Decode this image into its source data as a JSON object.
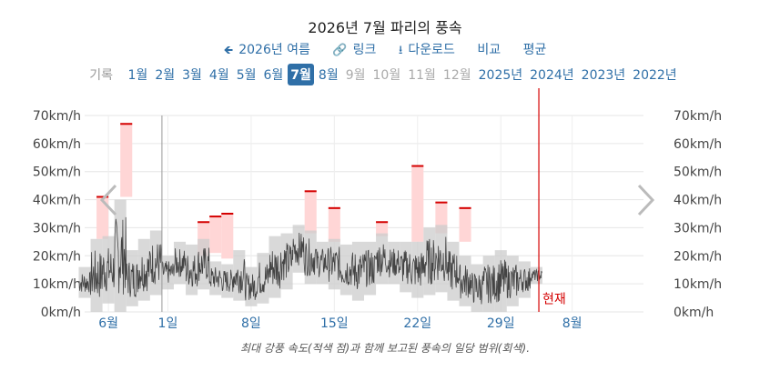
{
  "header": {
    "title": "2026년 7월 파리의 풍속",
    "back_label": "2026년 여름",
    "link_label": "링크",
    "download_label": "다운로드",
    "compare_label": "비교",
    "average_label": "평균"
  },
  "months": {
    "lead": "기록",
    "items": [
      "1월",
      "2월",
      "3월",
      "4월",
      "5월",
      "6월",
      "7월",
      "8월",
      "9월",
      "10월",
      "11월",
      "12월",
      "2025년",
      "2024년",
      "2023년",
      "2022년"
    ],
    "active_index": 6,
    "dim_indices": [
      8,
      9,
      10,
      11
    ]
  },
  "caption": "최대 강풍 속도(적색 점)과 함께 보고된 풍속의 일당 범위(회색).",
  "colors": {
    "accent": "#2f6fa7",
    "range": "#cccccc",
    "gust_fill": "#ffd6d6",
    "gust_mark": "#d40000",
    "now_line": "#d40000",
    "trace": "#444444"
  },
  "icons": [
    "arrow-left-icon",
    "link-icon",
    "download-icon",
    "chevron-left-icon",
    "chevron-right-icon"
  ],
  "chart_data": {
    "type": "bar",
    "title": "2026년 7월 파리의 풍속",
    "ylabel": "",
    "unit": "km/h",
    "ylim": [
      0,
      70
    ],
    "y_ticks": [
      "0km/h",
      "10km/h",
      "20km/h",
      "30km/h",
      "40km/h",
      "50km/h",
      "60km/h",
      "70km/h"
    ],
    "x_tick_labels": [
      {
        "day": -4,
        "label": "6월"
      },
      {
        "day": 1,
        "label": "1일"
      },
      {
        "day": 8,
        "label": "8일"
      },
      {
        "day": 15,
        "label": "15일"
      },
      {
        "day": 22,
        "label": "22일"
      },
      {
        "day": 29,
        "label": "29일"
      },
      {
        "day": 35,
        "label": "8월"
      }
    ],
    "x_range_days": [
      -6,
      41
    ],
    "month_start_day": 1,
    "now_day": 32.2,
    "now_label": "현재",
    "daily_range": [
      {
        "day": -6,
        "low": 5,
        "high": 16
      },
      {
        "day": -5,
        "low": 0,
        "high": 26
      },
      {
        "day": -4,
        "low": 3,
        "high": 27
      },
      {
        "day": -3,
        "low": 0,
        "high": 40
      },
      {
        "day": -2,
        "low": 2,
        "high": 22
      },
      {
        "day": -1,
        "low": 4,
        "high": 26
      },
      {
        "day": 0,
        "low": 6,
        "high": 29
      },
      {
        "day": 1,
        "low": 8,
        "high": 20
      },
      {
        "day": 2,
        "low": 10,
        "high": 25
      },
      {
        "day": 3,
        "low": 6,
        "high": 24
      },
      {
        "day": 4,
        "low": 8,
        "high": 26
      },
      {
        "day": 5,
        "low": 6,
        "high": 18
      },
      {
        "day": 6,
        "low": 5,
        "high": 17
      },
      {
        "day": 7,
        "low": 4,
        "high": 22
      },
      {
        "day": 8,
        "low": 2,
        "high": 16
      },
      {
        "day": 9,
        "low": 3,
        "high": 21
      },
      {
        "day": 10,
        "low": 5,
        "high": 27
      },
      {
        "day": 11,
        "low": 8,
        "high": 28
      },
      {
        "day": 12,
        "low": 14,
        "high": 31
      },
      {
        "day": 13,
        "low": 10,
        "high": 29
      },
      {
        "day": 14,
        "low": 10,
        "high": 25
      },
      {
        "day": 15,
        "low": 8,
        "high": 26
      },
      {
        "day": 16,
        "low": 6,
        "high": 24
      },
      {
        "day": 17,
        "low": 4,
        "high": 25
      },
      {
        "day": 18,
        "low": 6,
        "high": 25
      },
      {
        "day": 19,
        "low": 10,
        "high": 28
      },
      {
        "day": 20,
        "low": 10,
        "high": 25
      },
      {
        "day": 21,
        "low": 7,
        "high": 25
      },
      {
        "day": 22,
        "low": 5,
        "high": 25
      },
      {
        "day": 23,
        "low": 6,
        "high": 30
      },
      {
        "day": 24,
        "low": 7,
        "high": 31
      },
      {
        "day": 25,
        "low": 4,
        "high": 25
      },
      {
        "day": 26,
        "low": 2,
        "high": 20
      },
      {
        "day": 27,
        "low": 0,
        "high": 17
      },
      {
        "day": 28,
        "low": 0,
        "high": 20
      },
      {
        "day": 29,
        "low": 0,
        "high": 22
      },
      {
        "day": 30,
        "low": 2,
        "high": 20
      },
      {
        "day": 31,
        "low": 5,
        "high": 18
      },
      {
        "day": 32,
        "low": 10,
        "high": 16
      }
    ],
    "gusts": [
      {
        "day": -4.5,
        "low": 26,
        "high": 41
      },
      {
        "day": -2.5,
        "low": 41,
        "high": 67
      },
      {
        "day": 4,
        "low": 20,
        "high": 32
      },
      {
        "day": 5,
        "low": 21,
        "high": 34
      },
      {
        "day": 6,
        "low": 19,
        "high": 35
      },
      {
        "day": 13,
        "low": 28,
        "high": 43
      },
      {
        "day": 15,
        "low": 25,
        "high": 37
      },
      {
        "day": 19,
        "low": 27,
        "high": 32
      },
      {
        "day": 22,
        "low": 25,
        "high": 52
      },
      {
        "day": 24,
        "low": 28,
        "high": 39
      },
      {
        "day": 26,
        "low": 25,
        "high": 37
      }
    ],
    "trace_seed": 7
  }
}
